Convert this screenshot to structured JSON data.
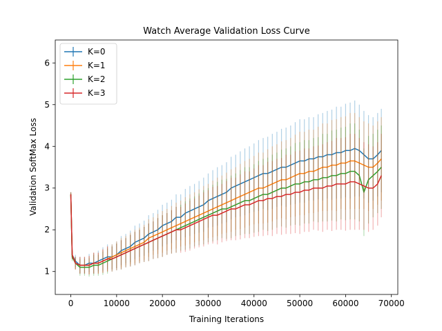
{
  "chart_data": {
    "type": "line",
    "title": "Watch Average Validation Loss Curve",
    "xlabel": "Training Iterations",
    "ylabel": "Validation SoftMax Loss",
    "xlim": [
      -3400,
      71400
    ],
    "ylim": [
      0.45,
      6.55
    ],
    "xticks": [
      0,
      10000,
      20000,
      30000,
      40000,
      50000,
      60000,
      70000
    ],
    "xtick_labels": [
      "0",
      "10000",
      "20000",
      "30000",
      "40000",
      "50000",
      "60000",
      "70000"
    ],
    "yticks": [
      1,
      2,
      3,
      4,
      5,
      6
    ],
    "ytick_labels": [
      "1",
      "2",
      "3",
      "4",
      "5",
      "6"
    ],
    "legend": {
      "placement": "top-left",
      "entries": [
        "K=0",
        "K=1",
        "K=2",
        "K=3"
      ]
    },
    "grid": false,
    "error_bars": true,
    "series": [
      {
        "name": "K=0",
        "color": "#1f77b4",
        "x": [
          0,
          300,
          1000,
          2000,
          3000,
          4000,
          5000,
          6000,
          7000,
          8000,
          9000,
          10000,
          11000,
          12000,
          13000,
          14000,
          15000,
          16000,
          17000,
          18000,
          19000,
          20000,
          21000,
          22000,
          23000,
          24000,
          25000,
          26000,
          27000,
          28000,
          29000,
          30000,
          31000,
          32000,
          33000,
          34000,
          35000,
          36000,
          37000,
          38000,
          39000,
          40000,
          41000,
          42000,
          43000,
          44000,
          45000,
          46000,
          47000,
          48000,
          49000,
          50000,
          51000,
          52000,
          53000,
          54000,
          55000,
          56000,
          57000,
          58000,
          59000,
          60000,
          61000,
          62000,
          63000,
          64000,
          65000,
          66000,
          67000,
          67800
        ],
        "y": [
          2.85,
          1.4,
          1.25,
          1.15,
          1.15,
          1.2,
          1.2,
          1.25,
          1.3,
          1.35,
          1.35,
          1.4,
          1.5,
          1.55,
          1.6,
          1.7,
          1.75,
          1.8,
          1.9,
          1.95,
          2.0,
          2.1,
          2.15,
          2.2,
          2.3,
          2.3,
          2.4,
          2.45,
          2.5,
          2.55,
          2.6,
          2.7,
          2.75,
          2.8,
          2.85,
          2.9,
          3.0,
          3.05,
          3.1,
          3.15,
          3.2,
          3.25,
          3.3,
          3.35,
          3.35,
          3.4,
          3.45,
          3.5,
          3.5,
          3.55,
          3.6,
          3.65,
          3.65,
          3.7,
          3.7,
          3.75,
          3.75,
          3.8,
          3.8,
          3.85,
          3.85,
          3.9,
          3.9,
          3.95,
          3.9,
          3.8,
          3.7,
          3.7,
          3.8,
          3.9
        ],
        "err": [
          0.05,
          0.1,
          0.15,
          0.2,
          0.2,
          0.22,
          0.25,
          0.25,
          0.28,
          0.3,
          0.3,
          0.32,
          0.35,
          0.35,
          0.38,
          0.4,
          0.4,
          0.42,
          0.45,
          0.45,
          0.48,
          0.5,
          0.5,
          0.52,
          0.55,
          0.55,
          0.58,
          0.6,
          0.6,
          0.62,
          0.65,
          0.65,
          0.68,
          0.7,
          0.7,
          0.72,
          0.75,
          0.75,
          0.78,
          0.8,
          0.8,
          0.82,
          0.85,
          0.85,
          0.88,
          0.9,
          0.9,
          0.92,
          0.95,
          0.95,
          0.98,
          1.0,
          1.0,
          1.0,
          1.0,
          1.02,
          1.05,
          1.05,
          1.08,
          1.1,
          1.1,
          1.12,
          1.15,
          1.15,
          1.1,
          1.05,
          1.05,
          1.0,
          1.0,
          1.0
        ]
      },
      {
        "name": "K=1",
        "color": "#ff7f0e",
        "x": [
          0,
          300,
          1000,
          2000,
          3000,
          4000,
          5000,
          6000,
          7000,
          8000,
          9000,
          10000,
          11000,
          12000,
          13000,
          14000,
          15000,
          16000,
          17000,
          18000,
          19000,
          20000,
          21000,
          22000,
          23000,
          24000,
          25000,
          26000,
          27000,
          28000,
          29000,
          30000,
          31000,
          32000,
          33000,
          34000,
          35000,
          36000,
          37000,
          38000,
          39000,
          40000,
          41000,
          42000,
          43000,
          44000,
          45000,
          46000,
          47000,
          48000,
          49000,
          50000,
          51000,
          52000,
          53000,
          54000,
          55000,
          56000,
          57000,
          58000,
          59000,
          60000,
          61000,
          62000,
          63000,
          64000,
          65000,
          66000,
          67000,
          67800
        ],
        "y": [
          2.85,
          1.4,
          1.2,
          1.15,
          1.15,
          1.15,
          1.2,
          1.2,
          1.25,
          1.3,
          1.35,
          1.4,
          1.45,
          1.5,
          1.55,
          1.6,
          1.65,
          1.7,
          1.8,
          1.85,
          1.9,
          1.95,
          2.0,
          2.05,
          2.1,
          2.15,
          2.2,
          2.25,
          2.3,
          2.35,
          2.4,
          2.45,
          2.5,
          2.55,
          2.6,
          2.65,
          2.7,
          2.75,
          2.8,
          2.85,
          2.9,
          2.95,
          3.0,
          3.0,
          3.05,
          3.1,
          3.15,
          3.2,
          3.2,
          3.25,
          3.3,
          3.35,
          3.35,
          3.4,
          3.4,
          3.45,
          3.5,
          3.5,
          3.55,
          3.55,
          3.6,
          3.6,
          3.65,
          3.65,
          3.6,
          3.55,
          3.5,
          3.5,
          3.6,
          3.7
        ],
        "err": [
          0.05,
          0.1,
          0.15,
          0.2,
          0.2,
          0.22,
          0.25,
          0.25,
          0.28,
          0.3,
          0.3,
          0.32,
          0.35,
          0.35,
          0.38,
          0.4,
          0.4,
          0.42,
          0.45,
          0.45,
          0.48,
          0.5,
          0.5,
          0.52,
          0.55,
          0.55,
          0.58,
          0.6,
          0.6,
          0.62,
          0.65,
          0.65,
          0.68,
          0.7,
          0.7,
          0.72,
          0.75,
          0.75,
          0.78,
          0.8,
          0.8,
          0.82,
          0.85,
          0.85,
          0.88,
          0.9,
          0.9,
          0.92,
          0.95,
          0.95,
          0.98,
          1.0,
          1.0,
          1.0,
          1.0,
          1.02,
          1.05,
          1.05,
          1.08,
          1.1,
          1.1,
          1.12,
          1.15,
          1.15,
          1.1,
          1.05,
          1.05,
          1.0,
          1.0,
          1.0
        ]
      },
      {
        "name": "K=2",
        "color": "#2ca02c",
        "x": [
          0,
          300,
          1000,
          2000,
          3000,
          4000,
          5000,
          6000,
          7000,
          8000,
          9000,
          10000,
          11000,
          12000,
          13000,
          14000,
          15000,
          16000,
          17000,
          18000,
          19000,
          20000,
          21000,
          22000,
          23000,
          24000,
          25000,
          26000,
          27000,
          28000,
          29000,
          30000,
          31000,
          32000,
          33000,
          34000,
          35000,
          36000,
          37000,
          38000,
          39000,
          40000,
          41000,
          42000,
          43000,
          44000,
          45000,
          46000,
          47000,
          48000,
          49000,
          50000,
          51000,
          52000,
          53000,
          54000,
          55000,
          56000,
          57000,
          58000,
          59000,
          60000,
          61000,
          62000,
          63000,
          64000,
          65000,
          66000,
          67000,
          67800
        ],
        "y": [
          2.85,
          1.35,
          1.2,
          1.1,
          1.1,
          1.1,
          1.15,
          1.15,
          1.2,
          1.25,
          1.3,
          1.35,
          1.4,
          1.45,
          1.5,
          1.55,
          1.6,
          1.65,
          1.7,
          1.75,
          1.8,
          1.85,
          1.9,
          1.95,
          2.0,
          2.05,
          2.1,
          2.15,
          2.2,
          2.25,
          2.3,
          2.35,
          2.4,
          2.45,
          2.5,
          2.5,
          2.55,
          2.6,
          2.65,
          2.7,
          2.7,
          2.75,
          2.8,
          2.85,
          2.85,
          2.9,
          2.95,
          3.0,
          3.0,
          3.05,
          3.1,
          3.1,
          3.15,
          3.15,
          3.2,
          3.2,
          3.25,
          3.25,
          3.3,
          3.3,
          3.35,
          3.35,
          3.4,
          3.4,
          3.3,
          2.9,
          3.2,
          3.3,
          3.4,
          3.5
        ],
        "err": [
          0.05,
          0.1,
          0.15,
          0.2,
          0.2,
          0.22,
          0.25,
          0.25,
          0.28,
          0.3,
          0.3,
          0.32,
          0.35,
          0.35,
          0.38,
          0.4,
          0.4,
          0.42,
          0.45,
          0.45,
          0.48,
          0.5,
          0.5,
          0.52,
          0.55,
          0.55,
          0.58,
          0.6,
          0.6,
          0.62,
          0.65,
          0.65,
          0.68,
          0.7,
          0.7,
          0.72,
          0.75,
          0.75,
          0.78,
          0.8,
          0.8,
          0.82,
          0.85,
          0.85,
          0.88,
          0.9,
          0.9,
          0.92,
          0.95,
          0.95,
          0.98,
          1.0,
          1.0,
          1.0,
          1.0,
          1.02,
          1.05,
          1.05,
          1.08,
          1.1,
          1.1,
          1.12,
          1.15,
          1.15,
          1.1,
          1.05,
          1.05,
          1.0,
          1.0,
          1.0
        ]
      },
      {
        "name": "K=3",
        "color": "#d62728",
        "x": [
          0,
          300,
          1000,
          2000,
          3000,
          4000,
          5000,
          6000,
          7000,
          8000,
          9000,
          10000,
          11000,
          12000,
          13000,
          14000,
          15000,
          16000,
          17000,
          18000,
          19000,
          20000,
          21000,
          22000,
          23000,
          24000,
          25000,
          26000,
          27000,
          28000,
          29000,
          30000,
          31000,
          32000,
          33000,
          34000,
          35000,
          36000,
          37000,
          38000,
          39000,
          40000,
          41000,
          42000,
          43000,
          44000,
          45000,
          46000,
          47000,
          48000,
          49000,
          50000,
          51000,
          52000,
          53000,
          54000,
          55000,
          56000,
          57000,
          58000,
          59000,
          60000,
          61000,
          62000,
          63000,
          64000,
          65000,
          66000,
          67000,
          67800
        ],
        "y": [
          2.85,
          1.4,
          1.2,
          1.15,
          1.15,
          1.15,
          1.2,
          1.2,
          1.25,
          1.3,
          1.3,
          1.35,
          1.4,
          1.45,
          1.5,
          1.55,
          1.6,
          1.65,
          1.7,
          1.75,
          1.8,
          1.85,
          1.9,
          1.95,
          2.0,
          2.0,
          2.05,
          2.1,
          2.15,
          2.2,
          2.25,
          2.3,
          2.35,
          2.35,
          2.4,
          2.45,
          2.5,
          2.5,
          2.55,
          2.6,
          2.6,
          2.65,
          2.7,
          2.7,
          2.75,
          2.75,
          2.8,
          2.8,
          2.85,
          2.85,
          2.9,
          2.9,
          2.95,
          2.95,
          3.0,
          3.0,
          3.0,
          3.05,
          3.05,
          3.1,
          3.1,
          3.1,
          3.15,
          3.15,
          3.1,
          3.05,
          3.0,
          3.0,
          3.1,
          3.3
        ],
        "err": [
          0.05,
          0.1,
          0.15,
          0.2,
          0.2,
          0.22,
          0.25,
          0.25,
          0.28,
          0.3,
          0.3,
          0.32,
          0.35,
          0.35,
          0.38,
          0.4,
          0.4,
          0.42,
          0.45,
          0.45,
          0.48,
          0.5,
          0.5,
          0.52,
          0.55,
          0.55,
          0.58,
          0.6,
          0.6,
          0.62,
          0.65,
          0.65,
          0.68,
          0.7,
          0.7,
          0.72,
          0.75,
          0.75,
          0.78,
          0.8,
          0.8,
          0.82,
          0.85,
          0.85,
          0.88,
          0.9,
          0.9,
          0.92,
          0.95,
          0.95,
          0.98,
          1.0,
          1.0,
          1.0,
          1.0,
          1.02,
          1.05,
          1.05,
          1.08,
          1.1,
          1.1,
          1.12,
          1.15,
          1.15,
          1.1,
          1.05,
          1.05,
          1.0,
          1.0,
          1.0
        ]
      }
    ]
  }
}
